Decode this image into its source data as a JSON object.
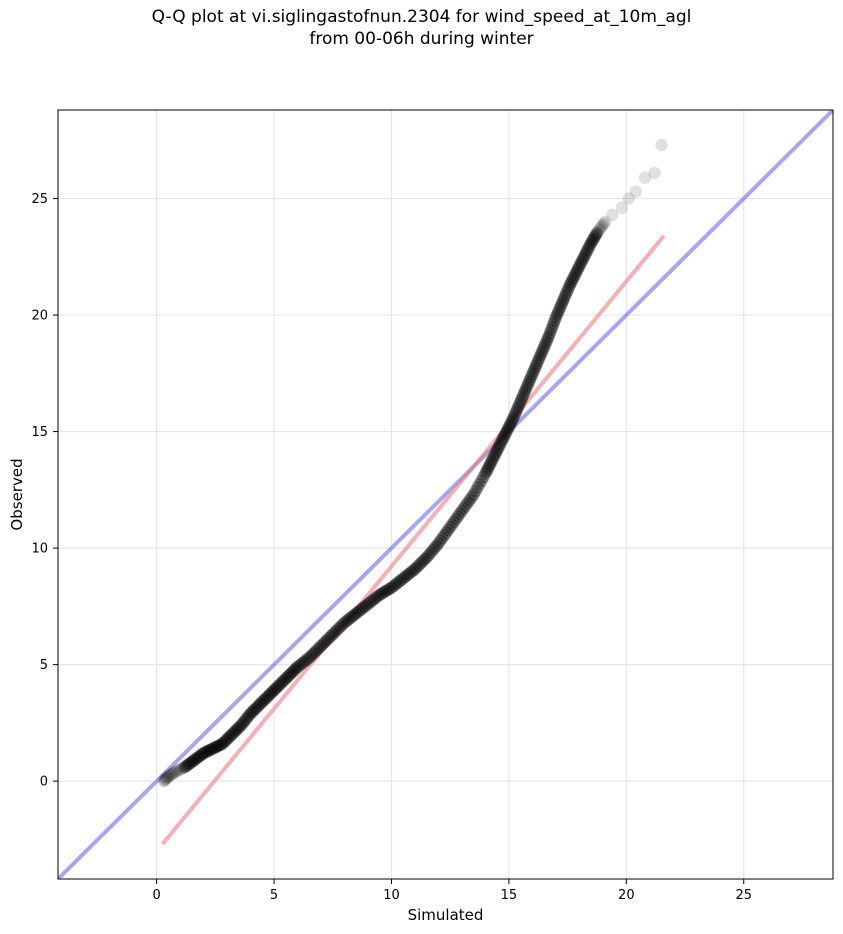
{
  "chart_data": {
    "type": "scatter",
    "title": "Q-Q plot at vi.siglingastofnun.2304 for wind_speed_at_10m_agl\nfrom 00-06h during winter",
    "xlabel": "Simulated",
    "ylabel": "Observed",
    "xlim": [
      -4.2,
      28.8
    ],
    "ylim": [
      -4.2,
      28.8
    ],
    "xticks": [
      0,
      5,
      10,
      15,
      20,
      25
    ],
    "yticks": [
      0,
      5,
      10,
      15,
      20,
      25
    ],
    "grid": true,
    "colors": {
      "points": "#000000",
      "identity_line": "#6b6bea",
      "fit_line": "#f07a80",
      "frame": "#000000",
      "grid": "#e6e6e6"
    },
    "identity_line": {
      "x": [
        -4.2,
        28.8
      ],
      "y": [
        -4.2,
        28.8
      ]
    },
    "fit_line": {
      "x": [
        0.25,
        21.6
      ],
      "y": [
        -2.7,
        23.4
      ]
    },
    "quantiles": {
      "x": [
        0.3,
        0.5,
        0.8,
        1.2,
        1.6,
        2.0,
        2.4,
        2.8,
        3.2,
        3.6,
        4.0,
        4.4,
        4.8,
        5.2,
        5.6,
        6.0,
        6.5,
        7.0,
        7.5,
        8.0,
        8.5,
        9.0,
        9.5,
        10.0,
        10.5,
        11.0,
        11.5,
        12.0,
        12.5,
        13.0,
        13.5,
        14.0,
        14.3,
        14.6,
        14.9,
        15.2,
        15.5,
        15.8,
        16.1,
        16.4,
        16.7,
        17.0,
        17.3,
        17.6,
        17.9,
        18.2,
        18.5,
        18.8,
        19.1,
        19.4,
        19.8,
        20.1,
        20.4,
        20.8,
        21.2,
        21.5
      ],
      "y": [
        0.0,
        0.2,
        0.4,
        0.6,
        0.9,
        1.2,
        1.4,
        1.6,
        2.0,
        2.4,
        2.9,
        3.3,
        3.7,
        4.1,
        4.5,
        4.9,
        5.3,
        5.8,
        6.3,
        6.8,
        7.2,
        7.6,
        8.0,
        8.3,
        8.7,
        9.1,
        9.6,
        10.2,
        10.9,
        11.6,
        12.3,
        13.2,
        13.8,
        14.4,
        15.0,
        15.6,
        16.3,
        17.0,
        17.7,
        18.4,
        19.1,
        19.9,
        20.6,
        21.3,
        21.9,
        22.5,
        23.1,
        23.6,
        24.0,
        24.3,
        24.6,
        25.0,
        25.3,
        25.9,
        26.1,
        27.3
      ]
    }
  }
}
